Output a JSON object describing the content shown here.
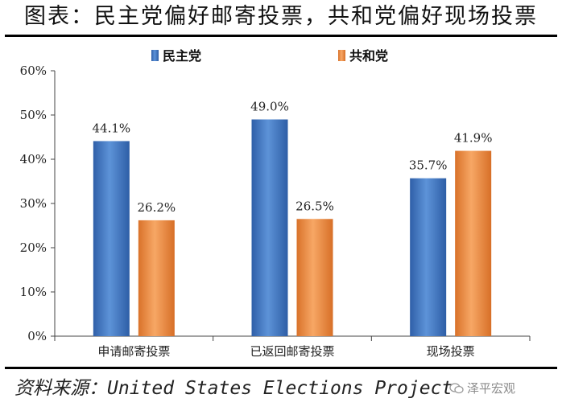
{
  "header": {
    "title": "图表：民主党偏好邮寄投票，共和党偏好现场投票"
  },
  "source": {
    "text": "资料来源：United States Elections Project"
  },
  "watermark": {
    "text": "泽平宏观",
    "icon": "wechat-icon"
  },
  "colors": {
    "democrat": "#3f73bf",
    "republican": "#ee8b3e",
    "axis": "#444444"
  },
  "chart_data": {
    "type": "bar",
    "categories": [
      "申请邮寄投票",
      "已返回邮寄投票",
      "现场投票"
    ],
    "series": [
      {
        "name": "民主党",
        "values": [
          44.1,
          49.0,
          35.7
        ],
        "labels": [
          "44.1%",
          "49.0%",
          "35.7%"
        ]
      },
      {
        "name": "共和党",
        "values": [
          26.2,
          26.5,
          41.9
        ],
        "labels": [
          "26.2%",
          "26.5%",
          "41.9%"
        ]
      }
    ],
    "yticks": [
      "0%",
      "10%",
      "20%",
      "30%",
      "40%",
      "50%",
      "60%"
    ],
    "ylim": [
      0,
      60
    ],
    "grid": false,
    "legend": "top-center"
  }
}
